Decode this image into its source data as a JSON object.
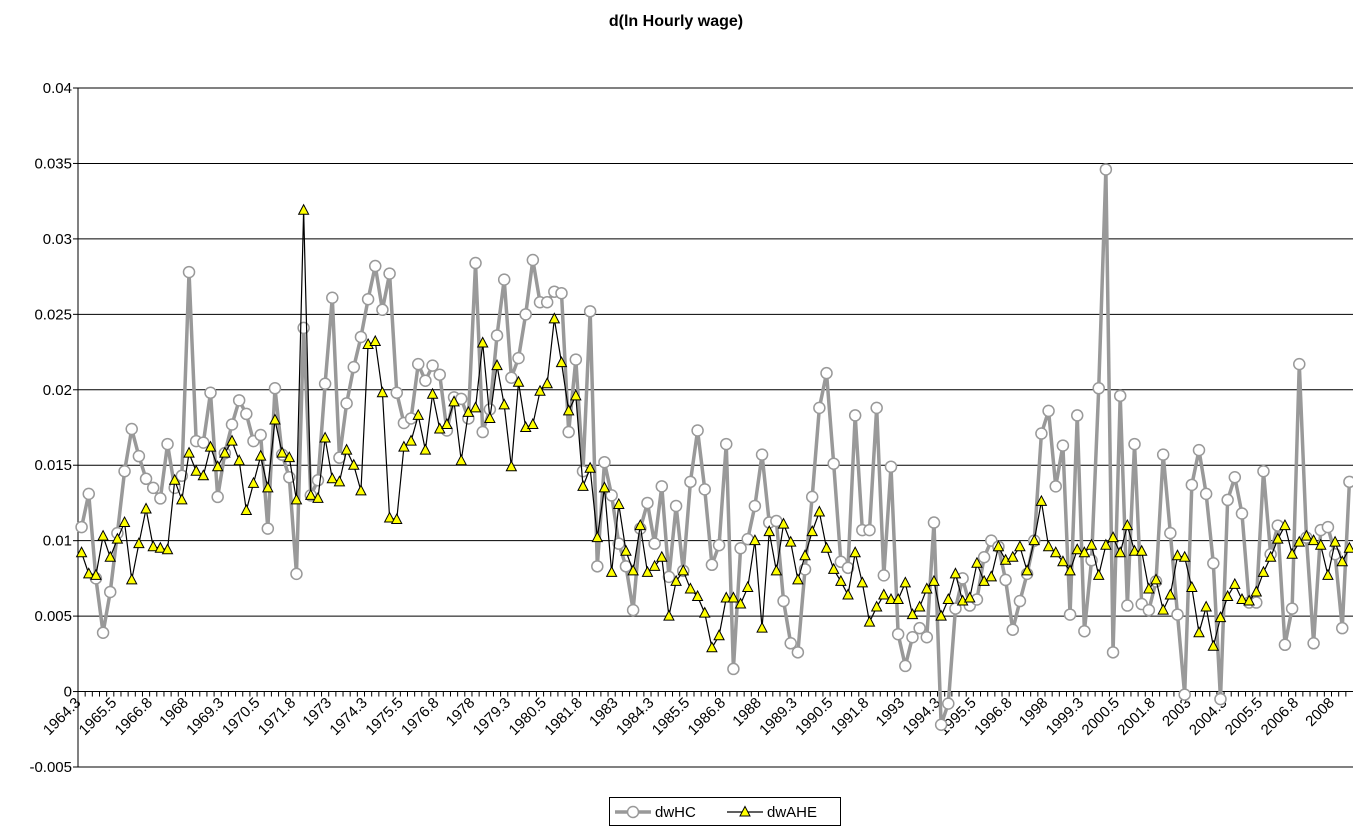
{
  "chart_data": {
    "type": "line",
    "title": "d(ln Hourly wage)",
    "categories": [
      "1964.3",
      null,
      null,
      null,
      null,
      "1965.5",
      null,
      null,
      null,
      null,
      "1966.8",
      null,
      null,
      null,
      null,
      "1968",
      null,
      null,
      null,
      null,
      "1969.3",
      null,
      null,
      null,
      null,
      "1970.5",
      null,
      null,
      null,
      null,
      "1971.8",
      null,
      null,
      null,
      null,
      "1973",
      null,
      null,
      null,
      null,
      "1974.3",
      null,
      null,
      null,
      null,
      "1975.5",
      null,
      null,
      null,
      null,
      "1976.8",
      null,
      null,
      null,
      null,
      "1978",
      null,
      null,
      null,
      null,
      "1979.3",
      null,
      null,
      null,
      null,
      "1980.5",
      null,
      null,
      null,
      null,
      "1981.8",
      null,
      null,
      null,
      null,
      "1983",
      null,
      null,
      null,
      null,
      "1984.3",
      null,
      null,
      null,
      null,
      "1985.5",
      null,
      null,
      null,
      null,
      "1986.8",
      null,
      null,
      null,
      null,
      "1988",
      null,
      null,
      null,
      null,
      "1989.3",
      null,
      null,
      null,
      null,
      "1990.5",
      null,
      null,
      null,
      null,
      "1991.8",
      null,
      null,
      null,
      null,
      "1993",
      null,
      null,
      null,
      null,
      "1994.3",
      null,
      null,
      null,
      null,
      "1995.5",
      null,
      null,
      null,
      null,
      "1996.8",
      null,
      null,
      null,
      null,
      "1998",
      null,
      null,
      null,
      null,
      "1999.3",
      null,
      null,
      null,
      null,
      "2000.5",
      null,
      null,
      null,
      null,
      "2001.8",
      null,
      null,
      null,
      null,
      "2003",
      null,
      null,
      null,
      null,
      "2004.3",
      null,
      null,
      null,
      null,
      "2005.5",
      null,
      null,
      null,
      null,
      "2006.8",
      null,
      null,
      null,
      null,
      "2008",
      null,
      null
    ],
    "series": [
      {
        "name": "dwHC",
        "color": "#999999",
        "marker": "circle",
        "values": [
          0.0109,
          0.0131,
          0.0075,
          0.0039,
          0.0066,
          0.0105,
          0.0146,
          0.0174,
          0.0156,
          0.0141,
          0.0135,
          0.0128,
          0.0164,
          0.0135,
          0.0143,
          0.0278,
          0.0166,
          0.0165,
          0.0198,
          0.0129,
          0.0158,
          0.0177,
          0.0193,
          0.0184,
          0.0166,
          0.017,
          0.0108,
          0.0201,
          0.0157,
          0.0142,
          0.0078,
          0.0241,
          0.013,
          0.014,
          0.0204,
          0.0261,
          0.0155,
          0.0191,
          0.0215,
          0.0235,
          0.026,
          0.0282,
          0.0253,
          0.0277,
          0.0198,
          0.0178,
          0.0181,
          0.0217,
          0.0206,
          0.0216,
          0.021,
          0.0173,
          0.0195,
          0.0194,
          0.0181,
          0.0284,
          0.0172,
          0.0187,
          0.0236,
          0.0273,
          0.0208,
          0.0221,
          0.025,
          0.0286,
          0.0258,
          0.0258,
          0.0265,
          0.0264,
          0.0172,
          0.022,
          0.0146,
          0.0252,
          0.0083,
          0.0152,
          0.013,
          0.0098,
          0.0083,
          0.0054,
          0.0108,
          0.0125,
          0.0098,
          0.0136,
          0.0076,
          0.0123,
          0.008,
          0.0139,
          0.0173,
          0.0134,
          0.0084,
          0.0097,
          0.0164,
          0.0015,
          0.0095,
          0.0101,
          0.0123,
          0.0157,
          0.0112,
          0.0113,
          0.006,
          0.0032,
          0.0026,
          0.0081,
          0.0129,
          0.0188,
          0.0211,
          0.0151,
          0.0086,
          0.0082,
          0.0183,
          0.0107,
          0.0107,
          0.0188,
          0.0077,
          0.0149,
          0.0038,
          0.0017,
          0.0036,
          0.0042,
          0.0036,
          0.0112,
          -0.0022,
          -0.0008,
          0.0055,
          0.0075,
          0.0057,
          0.0061,
          0.0089,
          0.01,
          0.0096,
          0.0074,
          0.0041,
          0.006,
          0.0078,
          0.01,
          0.0171,
          0.0186,
          0.0136,
          0.0163,
          0.0051,
          0.0183,
          0.004,
          0.0087,
          0.0201,
          0.0346,
          0.0026,
          0.0196,
          0.0057,
          0.0164,
          0.0058,
          0.0054,
          0.0073,
          0.0157,
          0.0105,
          0.0051,
          -0.0002,
          0.0137,
          0.016,
          0.0131,
          0.0085,
          -0.0005,
          0.0127,
          0.0142,
          0.0118,
          0.0059,
          0.0059,
          0.0146,
          0.0091,
          0.011,
          0.0031,
          0.0055,
          0.0217,
          0.0102,
          0.0032,
          0.0107,
          0.0109,
          0.0091,
          0.0042,
          0.0139
        ]
      },
      {
        "name": "dwAHE",
        "color": "#ffff00",
        "marker": "triangle",
        "values": [
          0.0092,
          0.0078,
          0.0077,
          0.0103,
          0.0089,
          0.0101,
          0.0112,
          0.0074,
          0.0098,
          0.0121,
          0.0096,
          0.0095,
          0.0094,
          0.014,
          0.0127,
          0.0158,
          0.0146,
          0.0143,
          0.0162,
          0.0149,
          0.0158,
          0.0166,
          0.0153,
          0.012,
          0.0138,
          0.0156,
          0.0135,
          0.018,
          0.0158,
          0.0155,
          0.0127,
          0.0319,
          0.013,
          0.0128,
          0.0168,
          0.0141,
          0.0139,
          0.016,
          0.015,
          0.0133,
          0.023,
          0.0232,
          0.0198,
          0.0115,
          0.0114,
          0.0162,
          0.0166,
          0.0183,
          0.016,
          0.0197,
          0.0174,
          0.0177,
          0.0192,
          0.0153,
          0.0185,
          0.0188,
          0.0231,
          0.0181,
          0.0216,
          0.019,
          0.0149,
          0.0205,
          0.0175,
          0.0177,
          0.0199,
          0.0204,
          0.0247,
          0.0218,
          0.0186,
          0.0196,
          0.0136,
          0.0148,
          0.0102,
          0.0135,
          0.0079,
          0.0124,
          0.0093,
          0.008,
          0.011,
          0.0079,
          0.0083,
          0.0089,
          0.005,
          0.0073,
          0.008,
          0.0068,
          0.0063,
          0.0052,
          0.0029,
          0.0037,
          0.0062,
          0.0062,
          0.0058,
          0.0069,
          0.01,
          0.0042,
          0.0106,
          0.008,
          0.0111,
          0.0099,
          0.0074,
          0.009,
          0.0106,
          0.0119,
          0.0095,
          0.0081,
          0.0073,
          0.0064,
          0.0092,
          0.0072,
          0.0046,
          0.0056,
          0.0064,
          0.0061,
          0.0061,
          0.0072,
          0.0051,
          0.0056,
          0.0068,
          0.0073,
          0.005,
          0.0061,
          0.0078,
          0.006,
          0.0062,
          0.0085,
          0.0073,
          0.0076,
          0.0096,
          0.0087,
          0.0089,
          0.0096,
          0.008,
          0.01,
          0.0126,
          0.0096,
          0.0092,
          0.0086,
          0.008,
          0.0094,
          0.0092,
          0.0097,
          0.0077,
          0.0097,
          0.0102,
          0.0092,
          0.011,
          0.0093,
          0.0093,
          0.0068,
          0.0074,
          0.0054,
          0.0064,
          0.009,
          0.0089,
          0.0069,
          0.0039,
          0.0056,
          0.003,
          0.0049,
          0.0063,
          0.0071,
          0.0061,
          0.006,
          0.0066,
          0.0079,
          0.0089,
          0.0101,
          0.011,
          0.0091,
          0.0099,
          0.0103,
          0.01,
          0.0097,
          0.0077,
          0.0099,
          0.0086,
          0.0095
        ]
      }
    ],
    "ylim": [
      -0.005,
      0.04
    ],
    "yticks": [
      -0.005,
      0,
      0.005,
      0.01,
      0.015,
      0.02,
      0.025,
      0.03,
      0.035,
      0.04
    ],
    "grid": true,
    "legend": "bottom"
  }
}
